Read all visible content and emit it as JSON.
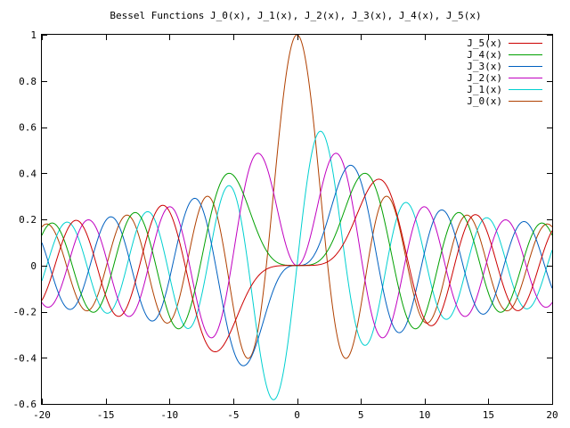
{
  "chart_data": {
    "type": "line",
    "title": "Bessel Functions J_0(x), J_1(x), J_2(x), J_3(x), J_4(x), J_5(x)",
    "xlabel": "",
    "ylabel": "",
    "xlim": [
      -20,
      20
    ],
    "ylim": [
      -0.6,
      1
    ],
    "x_ticks": [
      -20,
      -15,
      -10,
      -5,
      0,
      5,
      10,
      15,
      20
    ],
    "x_tick_labels": [
      "-20",
      "-15",
      "-10",
      "-5",
      "0",
      "5",
      "10",
      "15",
      "20"
    ],
    "y_ticks": [
      -0.6,
      -0.4,
      -0.2,
      0,
      0.2,
      0.4,
      0.6,
      0.8,
      1
    ],
    "y_tick_labels": [
      "-0.6",
      "-0.4",
      "-0.2",
      "0",
      "0.2",
      "0.4",
      "0.6",
      "0.8",
      "1"
    ],
    "grid": false,
    "legend_position": "top-right",
    "series": [
      {
        "name": "J_5(x)",
        "order": 5,
        "color": "#cc0000"
      },
      {
        "name": "J_4(x)",
        "order": 4,
        "color": "#00a000"
      },
      {
        "name": "J_3(x)",
        "order": 3,
        "color": "#0060c0"
      },
      {
        "name": "J_2(x)",
        "order": 2,
        "color": "#c000c0"
      },
      {
        "name": "J_1(x)",
        "order": 1,
        "color": "#00d0d0"
      },
      {
        "name": "J_0(x)",
        "order": 0,
        "color": "#b04000"
      }
    ]
  }
}
